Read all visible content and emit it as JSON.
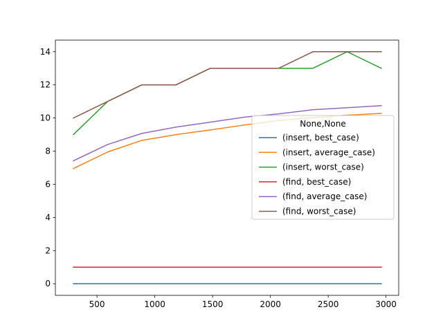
{
  "chart_data": {
    "type": "line",
    "title": "",
    "xlabel": "",
    "ylabel": "",
    "xlim": [
      140,
      3110
    ],
    "ylim": [
      -0.7,
      14.7
    ],
    "x": [
      296,
      592,
      888,
      1184,
      1480,
      1776,
      2072,
      2368,
      2664,
      2960
    ],
    "xticks": [
      500,
      1000,
      1500,
      2000,
      2500,
      3000
    ],
    "yticks": [
      0,
      2,
      4,
      6,
      8,
      10,
      12,
      14
    ],
    "grid": false,
    "legend": {
      "title": "None,None",
      "placement": "center-right"
    },
    "series": [
      {
        "name": "(insert, best_case)",
        "color": "#1f77b4",
        "values": [
          0,
          0,
          0,
          0,
          0,
          0,
          0,
          0,
          0,
          0
        ]
      },
      {
        "name": "(insert, average_case)",
        "color": "#ff7f0e",
        "values": [
          6.95,
          7.95,
          8.65,
          9.0,
          9.28,
          9.58,
          9.85,
          10.02,
          10.17,
          10.28
        ]
      },
      {
        "name": "(insert, worst_case)",
        "color": "#2ca02c",
        "values": [
          9,
          11,
          12,
          12,
          13,
          13,
          13,
          13,
          14,
          13
        ]
      },
      {
        "name": "(find, best_case)",
        "color": "#d62728",
        "values": [
          1,
          1,
          1,
          1,
          1,
          1,
          1,
          1,
          1,
          1
        ]
      },
      {
        "name": "(find, average_case)",
        "color": "#9467bd",
        "values": [
          7.42,
          8.4,
          9.07,
          9.45,
          9.75,
          10.05,
          10.25,
          10.5,
          10.62,
          10.75
        ]
      },
      {
        "name": "(find, worst_case)",
        "color": "#8c564b",
        "values": [
          10,
          11,
          12,
          12,
          13,
          13,
          13,
          14,
          14,
          14
        ]
      }
    ]
  }
}
